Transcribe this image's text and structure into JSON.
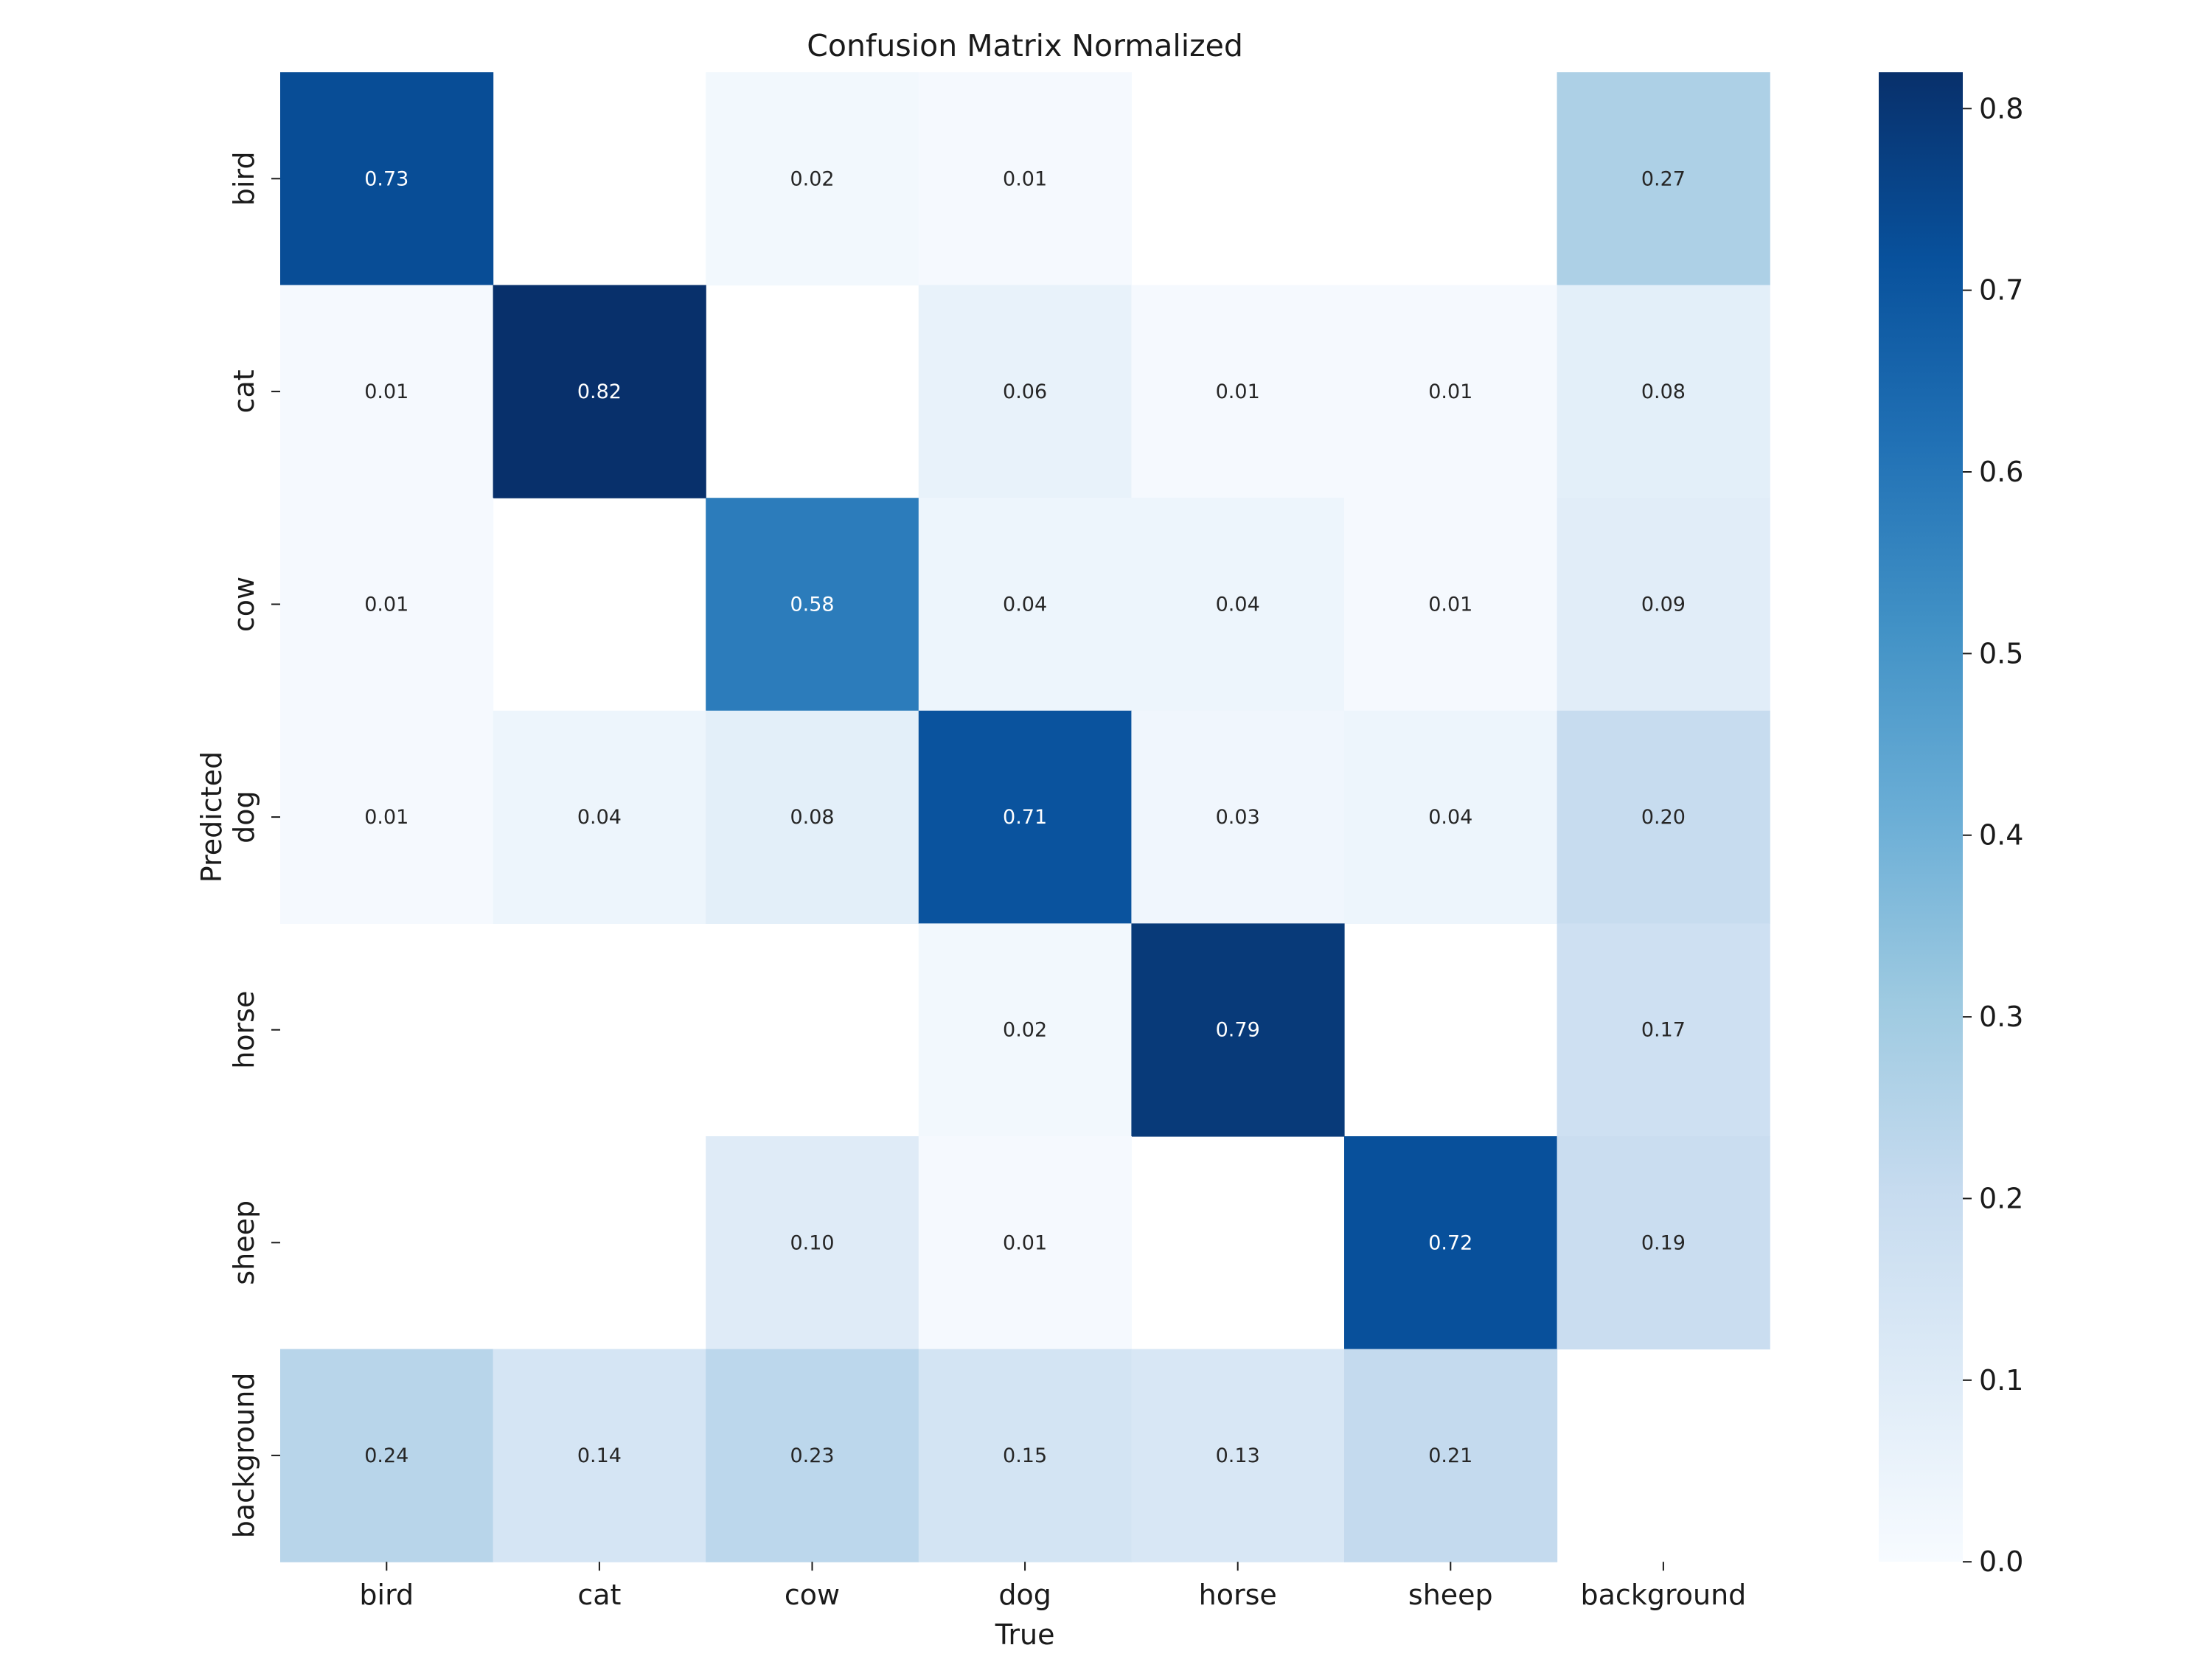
{
  "chart_data": {
    "type": "heatmap",
    "title": "Confusion Matrix Normalized",
    "xlabel": "True",
    "ylabel": "Predicted",
    "x_categories": [
      "bird",
      "cat",
      "cow",
      "dog",
      "horse",
      "sheep",
      "background"
    ],
    "y_categories": [
      "bird",
      "cat",
      "cow",
      "dog",
      "horse",
      "sheep",
      "background"
    ],
    "values": [
      [
        0.73,
        null,
        0.02,
        0.01,
        null,
        null,
        0.27
      ],
      [
        0.01,
        0.82,
        null,
        0.06,
        0.01,
        0.01,
        0.08
      ],
      [
        0.01,
        null,
        0.58,
        0.04,
        0.04,
        0.01,
        0.09
      ],
      [
        0.01,
        0.04,
        0.08,
        0.71,
        0.03,
        0.04,
        0.2
      ],
      [
        null,
        null,
        null,
        0.02,
        0.79,
        null,
        0.17
      ],
      [
        null,
        null,
        0.1,
        0.01,
        null,
        0.72,
        0.19
      ],
      [
        0.24,
        0.14,
        0.23,
        0.15,
        0.13,
        0.21,
        null
      ]
    ],
    "colorbar": {
      "range": [
        0.0,
        0.82
      ],
      "ticks": [
        0.0,
        0.1,
        0.2,
        0.3,
        0.4,
        0.5,
        0.6,
        0.7,
        0.8
      ],
      "tick_labels": [
        "0.0",
        "0.1",
        "0.2",
        "0.3",
        "0.4",
        "0.5",
        "0.6",
        "0.7",
        "0.8"
      ],
      "colormap": "Blues"
    }
  }
}
